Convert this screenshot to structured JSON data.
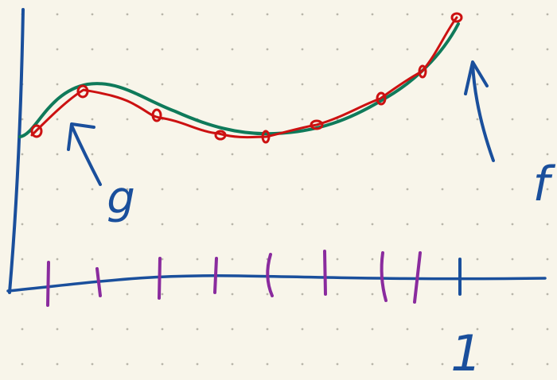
{
  "annotations": [
    {
      "text": "g"
    },
    {
      "text": "f"
    },
    {
      "text": "1"
    }
  ]
}
